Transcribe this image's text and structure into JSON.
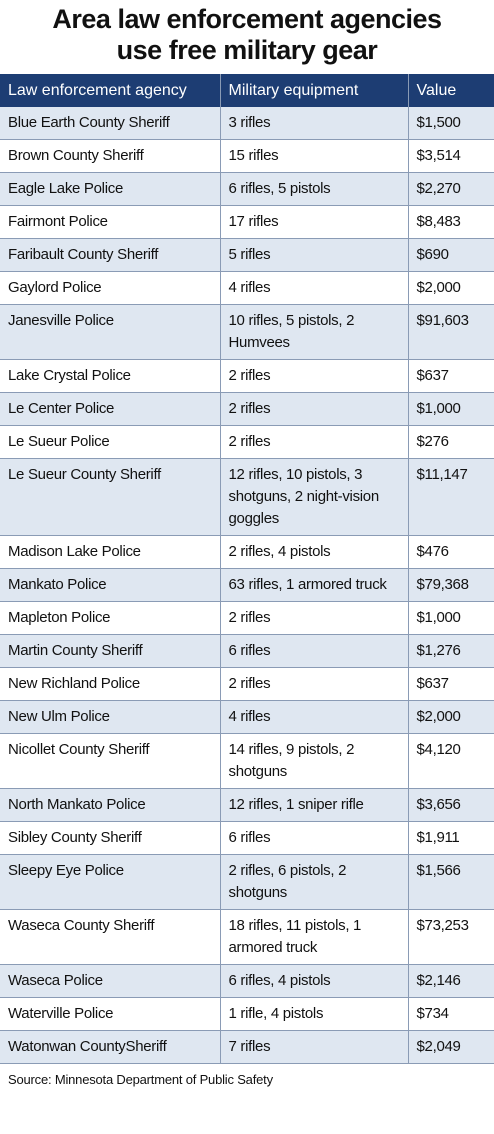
{
  "header": {
    "title": "Area law enforcement agencies use free military gear"
  },
  "table": {
    "columns": [
      "Law enforcement agency",
      "Military equipment",
      "Value"
    ],
    "rows": [
      [
        "Blue Earth County Sheriff",
        "3 rifles",
        "$1,500"
      ],
      [
        "Brown County Sheriff",
        "15 rifles",
        "$3,514"
      ],
      [
        "Eagle Lake Police",
        "6 rifles, 5 pistols",
        "$2,270"
      ],
      [
        "Fairmont Police",
        "17 rifles",
        "$8,483"
      ],
      [
        "Faribault County Sheriff",
        "5 rifles",
        "$690"
      ],
      [
        "Gaylord Police",
        "4 rifles",
        "$2,000"
      ],
      [
        "Janesville Police",
        "10 rifles, 5 pistols, 2 Humvees",
        "$91,603"
      ],
      [
        "Lake Crystal Police",
        "2 rifles",
        "$637"
      ],
      [
        "Le Center Police",
        "2 rifles",
        "$1,000"
      ],
      [
        "Le Sueur Police",
        "2 rifles",
        "$276"
      ],
      [
        "Le Sueur County Sheriff",
        "12 rifles, 10 pistols, 3 shotguns, 2 night-vision goggles",
        "$11,147"
      ],
      [
        "Madison Lake Police",
        "2 rifles, 4 pistols",
        "$476"
      ],
      [
        "Mankato Police",
        "63 rifles, 1 armored truck",
        "$79,368"
      ],
      [
        "Mapleton Police",
        "2 rifles",
        "$1,000"
      ],
      [
        "Martin County Sheriff",
        "6 rifles",
        "$1,276"
      ],
      [
        "New Richland Police",
        "2 rifles",
        "$637"
      ],
      [
        "New Ulm Police",
        "4 rifles",
        "$2,000"
      ],
      [
        "Nicollet County Sheriff",
        "14 rifles, 9 pistols, 2 shotguns",
        "$4,120"
      ],
      [
        "North Mankato Police",
        "12 rifles, 1 sniper rifle",
        "$3,656"
      ],
      [
        "Sibley County Sheriff",
        "6 rifles",
        "$1,911"
      ],
      [
        "Sleepy Eye Police",
        "2 rifles, 6 pistols, 2 shotguns",
        "$1,566"
      ],
      [
        "Waseca County Sheriff",
        "18 rifles, 11 pistols, 1 armored truck",
        "$73,253"
      ],
      [
        "Waseca Police",
        "6 rifles, 4 pistols",
        "$2,146"
      ],
      [
        "Waterville Police",
        "1 rifle, 4 pistols",
        "$734"
      ],
      [
        "Watonwan CountySheriff",
        "7 rifles",
        "$2,049"
      ]
    ]
  },
  "footer": {
    "source": "Source: Minnesota Department of Public Safety"
  }
}
